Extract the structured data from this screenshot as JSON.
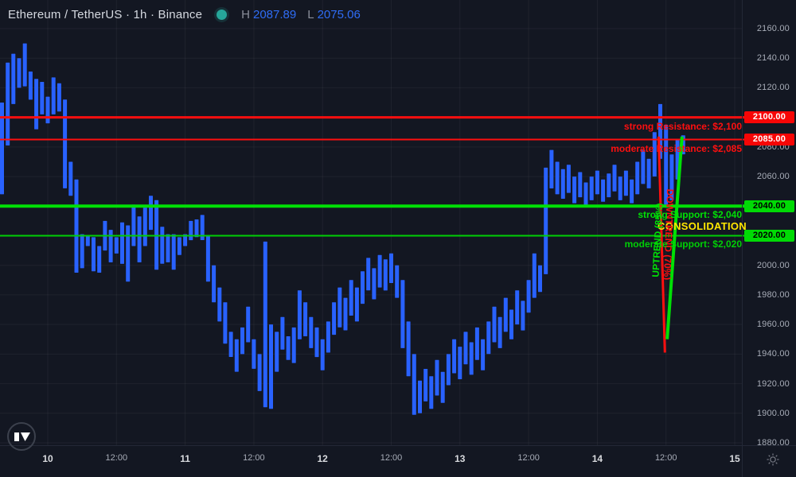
{
  "header": {
    "title": "Ethereum / TetherUS · 1h · Binance",
    "high_label": "H",
    "high_value": "2087.89",
    "low_label": "L",
    "low_value": "2075.06"
  },
  "colors": {
    "background": "#131722",
    "candle": "#2962ff",
    "resistance": "#ff0f0f",
    "support": "#00e005",
    "consolidation_yellow": "#ffe600",
    "grid": "rgba(255,255,255,0.05)",
    "axis_text": "#a8adb8",
    "axis_day_text": "#d8dade",
    "status_dot": "#26a69a"
  },
  "levels": [
    {
      "price": 2100,
      "axis_label": "2100.00",
      "label": "strong Resistance: $2,100",
      "type": "resistance",
      "color": "#ff0f0f",
      "badge_bg": "#f70606",
      "badge_text": "#ffffff",
      "thickness": 3
    },
    {
      "price": 2085,
      "axis_label": "2085.00",
      "label": "moderate Resistance: $2,085",
      "type": "resistance",
      "color": "#ff0f0f",
      "badge_bg": "#f70606",
      "badge_text": "#ffffff",
      "thickness": 2
    },
    {
      "price": 2040,
      "axis_label": "2040.00",
      "label": "strong Support: $2,040",
      "type": "support",
      "color": "#00e005",
      "badge_bg": "#00da05",
      "badge_text": "#000000",
      "thickness": 4
    },
    {
      "price": 2020,
      "axis_label": "2020.00",
      "label": "moderate Support: $2,020",
      "type": "support",
      "color": "#00cf05",
      "badge_bg": "#00da05",
      "badge_text": "#000000",
      "thickness": 2
    }
  ],
  "annotations": {
    "consolidation": "CONSOLIDATION",
    "downtrend_label": "DOWNTREND (70%)",
    "uptrend_label": "UPTREND (85%)"
  },
  "trendlines": [
    {
      "name": "downtrend-line",
      "color": "#ff0f0f",
      "h1": 106.7,
      "p1": 2087,
      "h2": 107.8,
      "p2": 1941,
      "thickness": 3
    },
    {
      "name": "uptrend-line",
      "color": "#00e005",
      "h1": 110.8,
      "p1": 2087,
      "h2": 108.2,
      "p2": 1950,
      "thickness": 4
    }
  ],
  "chart_data": {
    "type": "candlestick",
    "title": "Ethereum / TetherUS, 1h, Binance",
    "legend_high": 2087.89,
    "legend_low": 2075.06,
    "price_axis": {
      "ticks": [
        2160,
        2140,
        2120,
        2100,
        2080,
        2060,
        2040,
        2020,
        2000,
        1980,
        1960,
        1940,
        1920,
        1900,
        1880
      ],
      "format": "0.00",
      "range_shown": [
        1872,
        2166
      ]
    },
    "time_axis": {
      "ticks": [
        {
          "hour": 0,
          "label": "10",
          "kind": "day"
        },
        {
          "hour": 12,
          "label": "12:00",
          "kind": "time"
        },
        {
          "hour": 24,
          "label": "11",
          "kind": "day"
        },
        {
          "hour": 36,
          "label": "12:00",
          "kind": "time"
        },
        {
          "hour": 48,
          "label": "12",
          "kind": "day"
        },
        {
          "hour": 60,
          "label": "12:00",
          "kind": "time"
        },
        {
          "hour": 72,
          "label": "13",
          "kind": "day"
        },
        {
          "hour": 84,
          "label": "12:00",
          "kind": "time"
        },
        {
          "hour": 96,
          "label": "14",
          "kind": "day"
        },
        {
          "hour": 108,
          "label": "12:00",
          "kind": "time"
        },
        {
          "hour": 120,
          "label": "15",
          "kind": "day"
        }
      ]
    },
    "first_bar_hour": -8,
    "bar_interval_hours": 1,
    "bars_high_low": [
      [
        2110,
        2048
      ],
      [
        2137,
        2081
      ],
      [
        2143,
        2109
      ],
      [
        2140,
        2120
      ],
      [
        2150,
        2121
      ],
      [
        2131,
        2112
      ],
      [
        2126,
        2092
      ],
      [
        2124,
        2102
      ],
      [
        2114,
        2096
      ],
      [
        2127,
        2102
      ],
      [
        2123,
        2104
      ],
      [
        2112,
        2052
      ],
      [
        2070,
        2047
      ],
      [
        2058,
        1995
      ],
      [
        2021,
        1998
      ],
      [
        2020,
        2013
      ],
      [
        2019,
        1996
      ],
      [
        2013,
        1995
      ],
      [
        2030,
        2010
      ],
      [
        2024,
        2002
      ],
      [
        2019,
        2008
      ],
      [
        2029,
        2001
      ],
      [
        2027,
        1989
      ],
      [
        2041,
        2013
      ],
      [
        2033,
        2002
      ],
      [
        2039,
        2013
      ],
      [
        2047,
        2024
      ],
      [
        2044,
        1997
      ],
      [
        2026,
        2001
      ],
      [
        2021,
        2002
      ],
      [
        2021,
        1997
      ],
      [
        2019,
        2007
      ],
      [
        2021,
        2013
      ],
      [
        2030,
        2017
      ],
      [
        2031,
        2019
      ],
      [
        2034,
        2017
      ],
      [
        2020,
        1989
      ],
      [
        2000,
        1975
      ],
      [
        1985,
        1962
      ],
      [
        1975,
        1947
      ],
      [
        1955,
        1938
      ],
      [
        1950,
        1928
      ],
      [
        1958,
        1940
      ],
      [
        1972,
        1948
      ],
      [
        1950,
        1930
      ],
      [
        1940,
        1915
      ],
      [
        2016,
        1904
      ],
      [
        1960,
        1903
      ],
      [
        1955,
        1928
      ],
      [
        1965,
        1943
      ],
      [
        1952,
        1936
      ],
      [
        1958,
        1934
      ],
      [
        1983,
        1950
      ],
      [
        1975,
        1952
      ],
      [
        1965,
        1944
      ],
      [
        1958,
        1938
      ],
      [
        1950,
        1929
      ],
      [
        1962,
        1941
      ],
      [
        1975,
        1953
      ],
      [
        1985,
        1958
      ],
      [
        1978,
        1956
      ],
      [
        1990,
        1966
      ],
      [
        1985,
        1962
      ],
      [
        1996,
        1974
      ],
      [
        2005,
        1983
      ],
      [
        1998,
        1977
      ],
      [
        2007,
        1985
      ],
      [
        2004,
        1983
      ],
      [
        2008,
        1988
      ],
      [
        2000,
        1978
      ],
      [
        1990,
        1944
      ],
      [
        1962,
        1925
      ],
      [
        1940,
        1899
      ],
      [
        1922,
        1900
      ],
      [
        1930,
        1908
      ],
      [
        1925,
        1903
      ],
      [
        1936,
        1912
      ],
      [
        1928,
        1907
      ],
      [
        1940,
        1919
      ],
      [
        1950,
        1927
      ],
      [
        1945,
        1923
      ],
      [
        1955,
        1933
      ],
      [
        1948,
        1926
      ],
      [
        1958,
        1936
      ],
      [
        1950,
        1929
      ],
      [
        1962,
        1940
      ],
      [
        1972,
        1948
      ],
      [
        1965,
        1944
      ],
      [
        1978,
        1955
      ],
      [
        1970,
        1950
      ],
      [
        1983,
        1960
      ],
      [
        1976,
        1956
      ],
      [
        1990,
        1968
      ],
      [
        2008,
        1978
      ],
      [
        2000,
        1982
      ],
      [
        2066,
        1994
      ],
      [
        2078,
        2052
      ],
      [
        2070,
        2048
      ],
      [
        2065,
        2045
      ],
      [
        2068,
        2049
      ],
      [
        2060,
        2042
      ],
      [
        2063,
        2046
      ],
      [
        2056,
        2040
      ],
      [
        2060,
        2044
      ],
      [
        2064,
        2048
      ],
      [
        2058,
        2043
      ],
      [
        2062,
        2046
      ],
      [
        2068,
        2050
      ],
      [
        2060,
        2044
      ],
      [
        2064,
        2047
      ],
      [
        2058,
        2042
      ],
      [
        2070,
        2048
      ],
      [
        2078,
        2055
      ],
      [
        2072,
        2052
      ],
      [
        2090,
        2060
      ],
      [
        2109,
        2072
      ],
      [
        2095,
        2041
      ],
      [
        2075,
        2044
      ],
      [
        2085,
        2058
      ],
      [
        2087.89,
        2075.06
      ]
    ],
    "last_bar": {
      "high": 2087.89,
      "low": 2075.06
    }
  }
}
